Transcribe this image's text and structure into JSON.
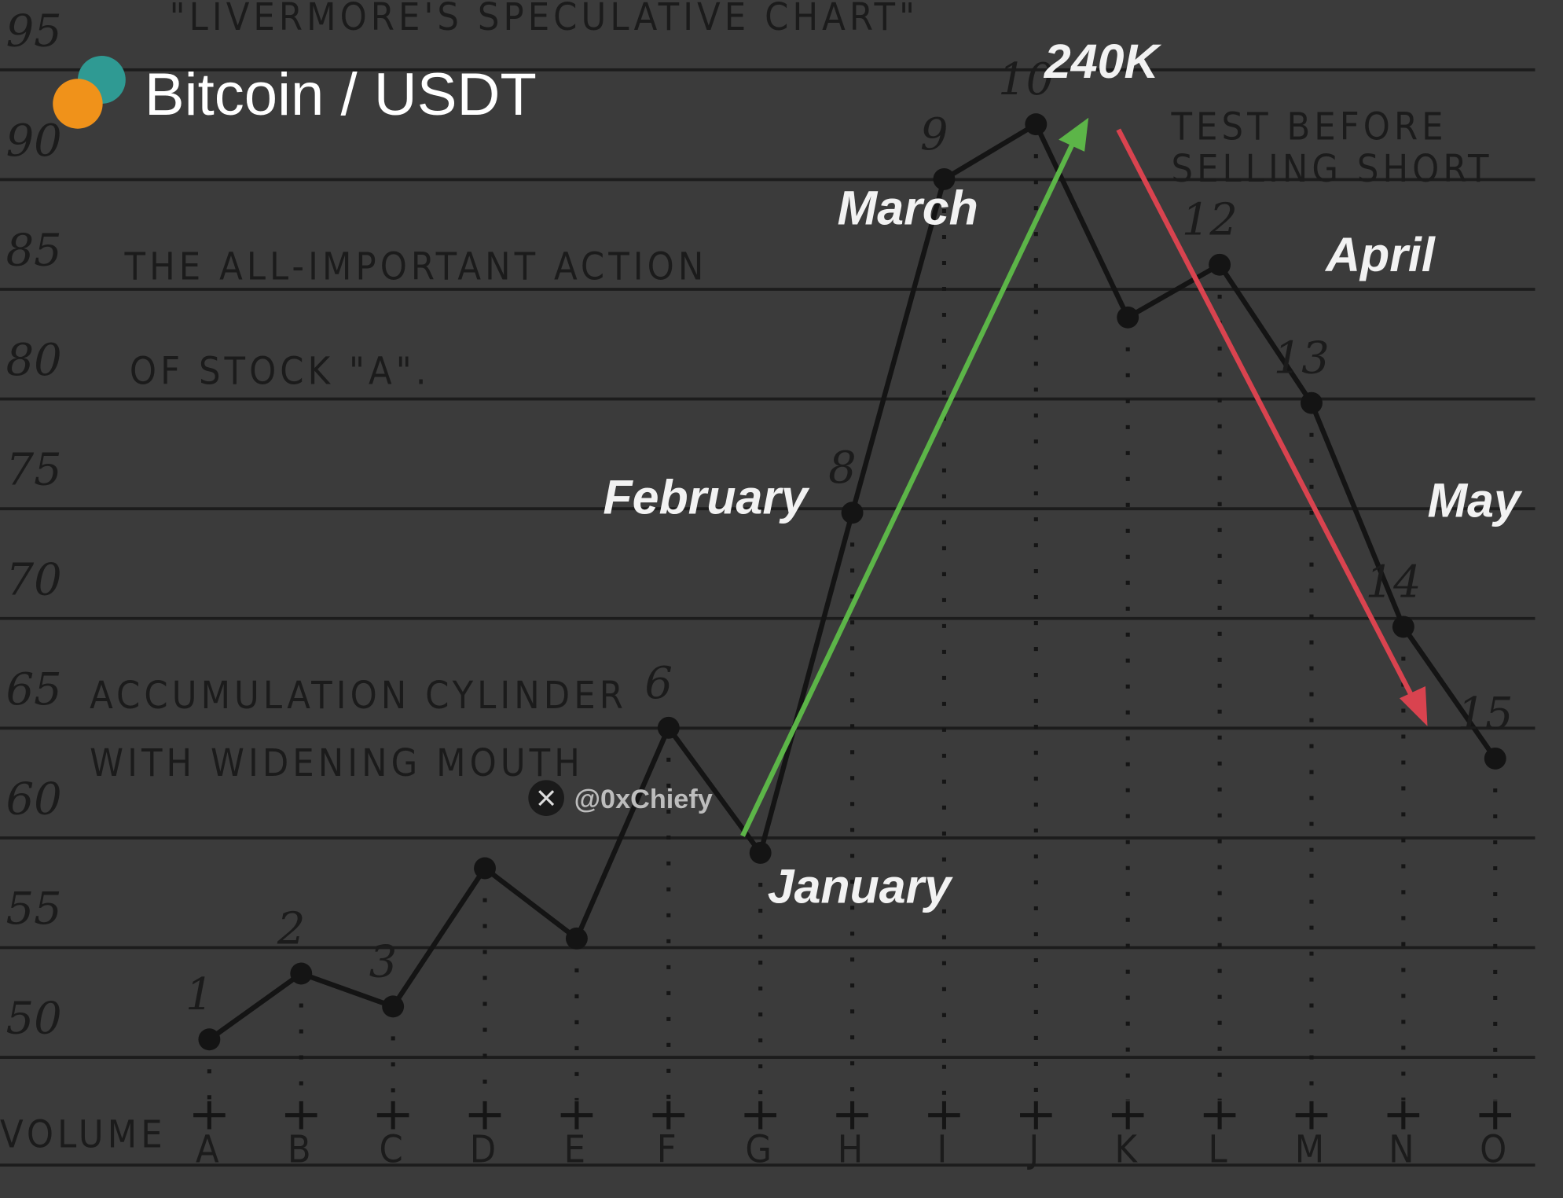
{
  "chart_data": {
    "type": "line",
    "title": "Bitcoin / USDT",
    "subtitle": "\"LIVERMORE'S SPECULATIVE CHART\"",
    "xlabel": "VOLUME",
    "categories": [
      "A",
      "B",
      "C",
      "D",
      "E",
      "F",
      "G",
      "H",
      "I",
      "J",
      "K",
      "L",
      "M",
      "N",
      "O"
    ],
    "values": [
      49,
      52,
      50.5,
      56.8,
      53.6,
      63.2,
      57.5,
      73,
      88.2,
      90.7,
      81.9,
      84.3,
      78,
      67.8,
      61.8
    ],
    "point_labels": [
      "1",
      "2",
      "3",
      null,
      null,
      "6",
      null,
      "8",
      "9",
      "10",
      null,
      "12",
      "13",
      "14",
      "15"
    ],
    "color": "#141414",
    "ylim": [
      46,
      96
    ],
    "yticks": [
      50,
      55,
      60,
      65,
      70,
      75,
      80,
      85,
      90,
      95
    ],
    "grid": true,
    "annotations": {
      "peak": "240K",
      "january": "January",
      "february": "February",
      "march": "March",
      "april": "April",
      "may": "May",
      "test_1": "TEST BEFORE",
      "test_2": "SELLING SHORT",
      "action_1": "THE ALL-IMPORTANT ACTION",
      "action_2": "OF STOCK \"A\".",
      "cylinder_1": "ACCUMULATION CYLINDER",
      "cylinder_2": "WITH WIDENING MOUTH",
      "watermark": "@0xChiefy"
    }
  }
}
